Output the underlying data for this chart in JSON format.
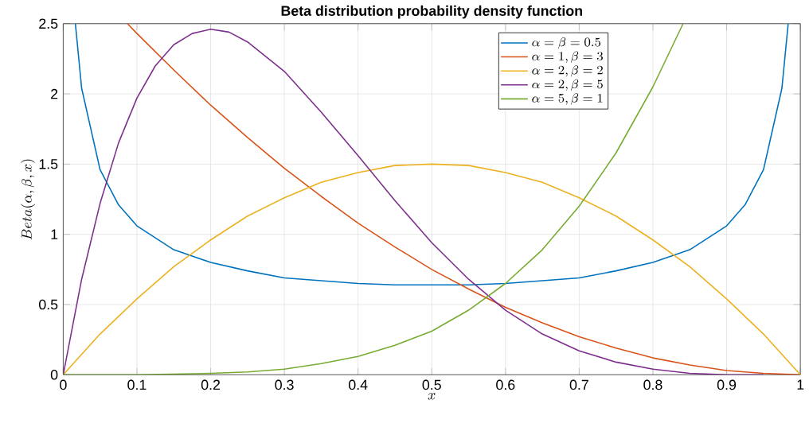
{
  "chart_data": {
    "type": "line",
    "title": "Beta distribution probability density function",
    "xlabel": "x",
    "ylabel": "Beta(\\alpha,\\beta,x)",
    "xlim": [
      0,
      1
    ],
    "ylim": [
      0,
      2.5
    ],
    "xticks": [
      0,
      0.1,
      0.2,
      0.3,
      0.4,
      0.5,
      0.6,
      0.7,
      0.8,
      0.9,
      1
    ],
    "yticks": [
      0,
      0.5,
      1,
      1.5,
      2,
      2.5
    ],
    "grid": true,
    "legend": "top right",
    "marker": "none",
    "line_style": "solid",
    "series": [
      {
        "name": "\\alpha = \\beta = 0.5",
        "color": "#0072bd",
        "x": [
          0.0165,
          0.025,
          0.05,
          0.075,
          0.1,
          0.15,
          0.2,
          0.25,
          0.3,
          0.35,
          0.4,
          0.45,
          0.5,
          0.55,
          0.6,
          0.65,
          0.7,
          0.75,
          0.8,
          0.85,
          0.9,
          0.925,
          0.95,
          0.975,
          0.9835
        ],
        "values": [
          2.5,
          2.04,
          1.46,
          1.21,
          1.06,
          0.89,
          0.8,
          0.74,
          0.69,
          0.67,
          0.65,
          0.64,
          0.64,
          0.64,
          0.65,
          0.67,
          0.69,
          0.74,
          0.8,
          0.89,
          1.06,
          1.21,
          1.46,
          2.04,
          2.5
        ]
      },
      {
        "name": "\\alpha = 1, \\beta = 3",
        "color": "#d95319",
        "x": [
          0.0871,
          0.1,
          0.15,
          0.2,
          0.25,
          0.3,
          0.35,
          0.4,
          0.45,
          0.5,
          0.55,
          0.6,
          0.65,
          0.7,
          0.75,
          0.8,
          0.85,
          0.9,
          0.95,
          1
        ],
        "values": [
          2.5,
          2.43,
          2.17,
          1.92,
          1.69,
          1.47,
          1.27,
          1.08,
          0.91,
          0.75,
          0.61,
          0.48,
          0.37,
          0.27,
          0.19,
          0.12,
          0.07,
          0.03,
          0.01,
          0
        ]
      },
      {
        "name": "\\alpha = 2, \\beta = 2",
        "color": "#edb120",
        "x": [
          0,
          0.05,
          0.1,
          0.15,
          0.2,
          0.25,
          0.3,
          0.35,
          0.4,
          0.45,
          0.5,
          0.55,
          0.6,
          0.65,
          0.7,
          0.75,
          0.8,
          0.85,
          0.9,
          0.95,
          1
        ],
        "values": [
          0,
          0.29,
          0.54,
          0.77,
          0.96,
          1.13,
          1.26,
          1.37,
          1.44,
          1.49,
          1.5,
          1.49,
          1.44,
          1.37,
          1.26,
          1.13,
          0.96,
          0.77,
          0.54,
          0.29,
          0
        ]
      },
      {
        "name": "\\alpha = 2, \\beta = 5",
        "color": "#7e2f8e",
        "x": [
          0,
          0.025,
          0.05,
          0.075,
          0.1,
          0.125,
          0.15,
          0.175,
          0.2,
          0.225,
          0.25,
          0.3,
          0.35,
          0.4,
          0.45,
          0.5,
          0.55,
          0.6,
          0.65,
          0.7,
          0.75,
          0.8,
          0.85,
          0.9,
          0.95
        ],
        "values": [
          0,
          0.68,
          1.22,
          1.65,
          1.97,
          2.2,
          2.35,
          2.43,
          2.46,
          2.44,
          2.37,
          2.16,
          1.87,
          1.56,
          1.24,
          0.94,
          0.68,
          0.46,
          0.29,
          0.17,
          0.09,
          0.04,
          0.01,
          0,
          0
        ]
      },
      {
        "name": "\\alpha = 5, \\beta = 1",
        "color": "#77ac30",
        "x": [
          0,
          0.1,
          0.2,
          0.25,
          0.3,
          0.35,
          0.4,
          0.45,
          0.5,
          0.55,
          0.6,
          0.65,
          0.7,
          0.75,
          0.8,
          0.8409
        ],
        "values": [
          0,
          0,
          0.01,
          0.02,
          0.04,
          0.08,
          0.13,
          0.21,
          0.31,
          0.46,
          0.65,
          0.89,
          1.2,
          1.58,
          2.05,
          2.5
        ]
      }
    ]
  }
}
